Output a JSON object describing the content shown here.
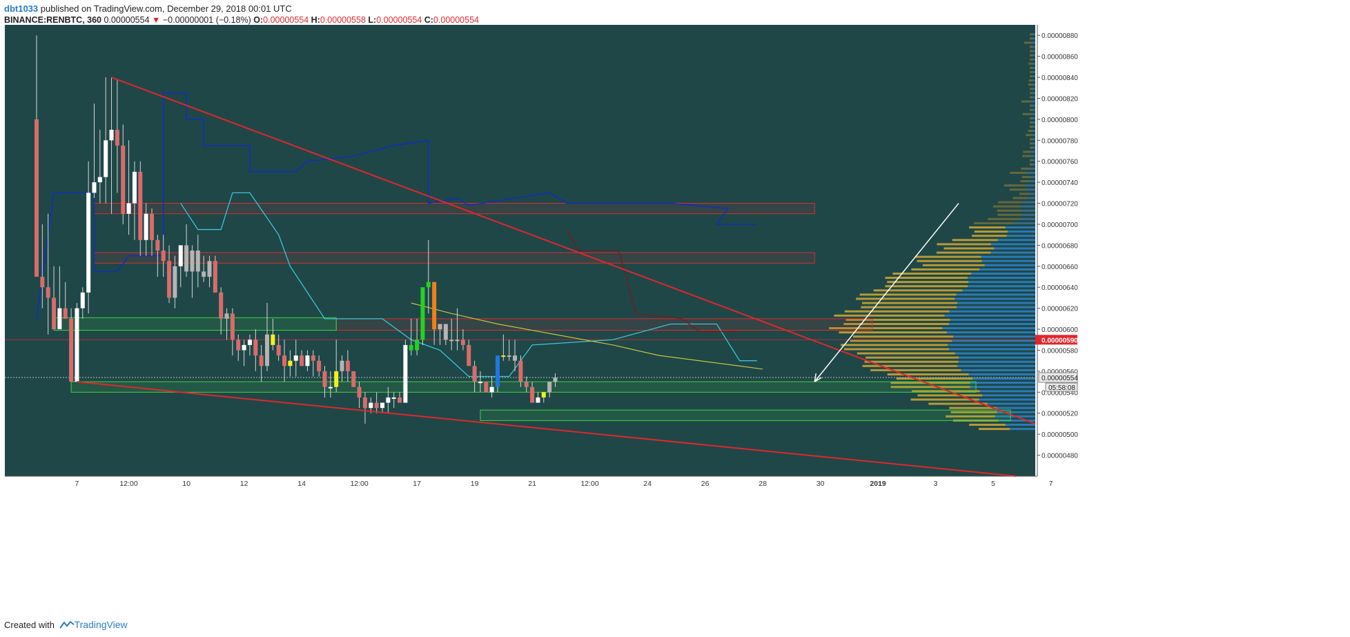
{
  "header": {
    "author": "dbt1033",
    "published_text": "published on TradingView.com, December 29, 2018 00:01 UTC",
    "symbol": "BINANCE:RENBTC, 360",
    "last": "0.00000554",
    "change": "−0.00000001 (−0.18%)",
    "ohlc": [
      {
        "label": "O:",
        "value": "0.00000554"
      },
      {
        "label": "H:",
        "value": "0.00000558"
      },
      {
        "label": "L:",
        "value": "0.00000554"
      },
      {
        "label": "C:",
        "value": "0.00000554"
      }
    ]
  },
  "footer": {
    "created_with": "Created with",
    "brand": "TradingView"
  },
  "colors": {
    "background": "#1f4748",
    "bull": "#ffffff",
    "bear": "#d96b6b",
    "trendline": "#e3262b",
    "kijun": "#0b2bd0",
    "tenkan": "#39c6d9",
    "ma": "#d7cf3a",
    "zone_green": "#3fd33f",
    "zone_red": "#d8302e",
    "vp_up": "#2b7fc1",
    "vp_down": "#c9a332",
    "vp_dim": "#6e6c3a"
  },
  "chart_data": {
    "type": "candlestick",
    "y_axis": {
      "ylim": [
        4.6e-06,
        8.9e-06
      ],
      "ticks": [
        "0.00000480",
        "0.00000500",
        "0.00000520",
        "0.00000540",
        "0.00000560",
        "0.00000580",
        "0.00000600",
        "0.00000620",
        "0.00000640",
        "0.00000660",
        "0.00000680",
        "0.00000700",
        "0.00000720",
        "0.00000740",
        "0.00000760",
        "0.00000780",
        "0.00000800",
        "0.00000820",
        "0.00000840",
        "0.00000860",
        "0.00000880"
      ],
      "ticks_values": [
        4.8,
        5.0,
        5.2,
        5.4,
        5.6,
        5.8,
        6.0,
        6.2,
        6.4,
        6.6,
        6.8,
        7.0,
        7.2,
        7.4,
        7.6,
        7.8,
        8.0,
        8.2,
        8.4,
        8.6,
        8.8
      ],
      "scale_note": "values in 1e-6 BTC"
    },
    "x_axis": {
      "ticks": [
        "7",
        "12:00",
        "10",
        "12",
        "14",
        "12:00",
        "17",
        "19",
        "21",
        "12:00",
        "24",
        "26",
        "28",
        "30",
        "2019",
        "3",
        "5",
        "7"
      ],
      "tick_index": [
        7,
        16,
        26,
        36,
        46,
        56,
        66,
        76,
        86,
        96,
        106,
        116,
        126,
        136,
        146,
        156,
        166,
        176
      ],
      "bold_tick": "2019"
    },
    "candles_ohlc_1e6": [
      [
        8.0,
        8.8,
        6.5,
        6.5
      ],
      [
        6.5,
        7.0,
        6.2,
        6.4
      ],
      [
        6.4,
        7.1,
        5.95,
        6.3
      ],
      [
        6.3,
        6.6,
        6.0,
        6.0
      ],
      [
        6.0,
        6.6,
        6.05,
        6.2
      ],
      [
        6.2,
        6.45,
        6.1,
        6.1
      ],
      [
        6.1,
        6.2,
        5.5,
        5.5
      ],
      [
        5.5,
        6.25,
        5.5,
        6.2
      ],
      [
        6.2,
        6.4,
        6.1,
        6.35
      ],
      [
        6.35,
        7.6,
        6.15,
        7.3
      ],
      [
        7.3,
        8.15,
        7.25,
        7.4
      ],
      [
        7.4,
        7.9,
        7.2,
        7.45
      ],
      [
        7.45,
        8.4,
        7.2,
        7.8
      ],
      [
        7.8,
        8.4,
        7.1,
        7.9
      ],
      [
        7.9,
        8.38,
        7.3,
        7.75
      ],
      [
        7.75,
        7.95,
        7.0,
        7.1
      ],
      [
        7.1,
        7.8,
        6.9,
        7.2
      ],
      [
        7.2,
        7.6,
        6.85,
        7.5
      ],
      [
        7.5,
        7.6,
        6.7,
        6.85
      ],
      [
        6.85,
        7.2,
        6.7,
        7.1
      ],
      [
        7.1,
        7.15,
        6.7,
        6.85
      ],
      [
        6.85,
        6.9,
        6.5,
        6.75
      ],
      [
        6.75,
        6.9,
        6.5,
        6.65
      ],
      [
        6.65,
        6.8,
        6.25,
        6.3
      ],
      [
        6.3,
        6.7,
        6.2,
        6.6
      ],
      [
        6.6,
        6.8,
        6.4,
        6.8
      ],
      [
        6.8,
        7.0,
        6.5,
        6.55
      ],
      [
        6.55,
        6.8,
        6.3,
        6.75
      ],
      [
        6.75,
        6.9,
        6.4,
        6.55
      ],
      [
        6.55,
        6.7,
        6.45,
        6.5
      ],
      [
        6.5,
        6.7,
        6.4,
        6.65
      ],
      [
        6.65,
        6.7,
        6.35,
        6.35
      ],
      [
        6.35,
        6.4,
        5.95,
        6.1
      ],
      [
        6.1,
        6.2,
        5.9,
        6.15
      ],
      [
        6.15,
        6.2,
        5.75,
        5.9
      ],
      [
        5.9,
        5.95,
        5.7,
        5.8
      ],
      [
        5.8,
        5.9,
        5.65,
        5.85
      ],
      [
        5.85,
        5.95,
        5.75,
        5.9
      ],
      [
        5.9,
        6.0,
        5.6,
        5.75
      ],
      [
        5.75,
        5.85,
        5.5,
        5.65
      ],
      [
        5.65,
        6.25,
        5.6,
        5.95
      ],
      [
        5.95,
        6.1,
        5.8,
        5.85
      ],
      [
        5.85,
        5.95,
        5.7,
        5.75
      ],
      [
        5.75,
        5.9,
        5.5,
        5.65
      ],
      [
        5.65,
        5.8,
        5.55,
        5.7
      ],
      [
        5.7,
        5.9,
        5.55,
        5.75
      ],
      [
        5.75,
        5.8,
        5.65,
        5.65
      ],
      [
        5.65,
        5.8,
        5.6,
        5.75
      ],
      [
        5.75,
        5.8,
        5.55,
        5.7
      ],
      [
        5.7,
        5.75,
        5.55,
        5.6
      ],
      [
        5.6,
        5.65,
        5.35,
        5.45
      ],
      [
        5.45,
        5.6,
        5.35,
        5.45
      ],
      [
        5.45,
        5.9,
        5.4,
        5.6
      ],
      [
        5.6,
        5.75,
        5.5,
        5.7
      ],
      [
        5.7,
        5.8,
        5.5,
        5.6
      ],
      [
        5.6,
        5.6,
        5.45,
        5.45
      ],
      [
        5.45,
        5.5,
        5.25,
        5.35
      ],
      [
        5.35,
        5.4,
        5.1,
        5.25
      ],
      [
        5.25,
        5.35,
        5.2,
        5.3
      ],
      [
        5.3,
        5.4,
        5.2,
        5.25
      ],
      [
        5.25,
        5.3,
        5.2,
        5.3
      ],
      [
        5.3,
        5.45,
        5.2,
        5.35
      ],
      [
        5.35,
        5.4,
        5.25,
        5.35
      ],
      [
        5.35,
        5.4,
        5.3,
        5.3
      ],
      [
        5.3,
        5.9,
        5.3,
        5.85
      ],
      [
        5.85,
        6.1,
        5.75,
        5.8
      ],
      [
        5.8,
        6.1,
        5.75,
        5.9
      ],
      [
        5.9,
        6.2,
        5.85,
        6.4
      ],
      [
        6.4,
        6.85,
        6.15,
        6.45
      ],
      [
        6.45,
        6.45,
        5.85,
        6.0
      ],
      [
        6.0,
        6.05,
        5.85,
        6.05
      ],
      [
        6.05,
        6.05,
        5.85,
        5.9
      ],
      [
        5.9,
        6.1,
        5.8,
        5.9
      ],
      [
        5.9,
        6.2,
        5.8,
        5.9
      ],
      [
        5.9,
        6.0,
        5.8,
        5.85
      ],
      [
        5.85,
        5.9,
        5.7,
        5.65
      ],
      [
        5.65,
        5.7,
        5.4,
        5.5
      ],
      [
        5.5,
        5.6,
        5.4,
        5.5
      ],
      [
        5.5,
        5.5,
        5.4,
        5.4
      ],
      [
        5.4,
        5.55,
        5.35,
        5.45
      ],
      [
        5.45,
        5.75,
        5.4,
        5.75
      ],
      [
        5.75,
        5.95,
        5.7,
        5.75
      ],
      [
        5.75,
        5.9,
        5.7,
        5.75
      ],
      [
        5.75,
        5.9,
        5.6,
        5.7
      ],
      [
        5.7,
        5.75,
        5.45,
        5.5
      ],
      [
        5.5,
        5.55,
        5.4,
        5.45
      ],
      [
        5.45,
        5.5,
        5.35,
        5.3
      ],
      [
        5.3,
        5.4,
        5.3,
        5.35
      ],
      [
        5.35,
        5.4,
        5.3,
        5.4
      ],
      [
        5.4,
        5.5,
        5.35,
        5.5
      ],
      [
        5.5,
        5.58,
        5.45,
        5.54
      ]
    ],
    "candle_colors": {
      "9": "bull",
      "13": "bull",
      "16": "bull",
      "41": "yellow",
      "44": "yellow",
      "52": "yellow",
      "65": "green",
      "66": "green",
      "67": "green",
      "68": "green",
      "69": "orange",
      "80": "blue",
      "81": "yellow",
      "88": "yellow",
      "24": "gray",
      "26": "gray",
      "27": "gray",
      "28": "gray",
      "30": "gray",
      "71": "gray",
      "72": "gray",
      "73": "gray",
      "89": "gray",
      "90": "gray",
      "29": "gray",
      "33": "gray",
      "40": "gray",
      "53": "gray",
      "70": "gray",
      "82": "gray",
      "83": "gray"
    },
    "horizontal_zones_1e6": [
      {
        "color": "red",
        "y1": 7.1,
        "y2": 7.2,
        "x1": 10,
        "x2": 135
      },
      {
        "color": "red",
        "y1": 6.63,
        "y2": 6.73,
        "x1": 10,
        "x2": 135
      },
      {
        "color": "red",
        "y1": 5.99,
        "y2": 6.1,
        "x1": 52,
        "x2": 145
      },
      {
        "color": "green",
        "y1": 5.99,
        "y2": 6.11,
        "x1": 3,
        "x2": 52
      },
      {
        "color": "green",
        "y1": 5.4,
        "y2": 5.5,
        "x1": 6,
        "x2": 163
      },
      {
        "color": "green",
        "y1": 5.13,
        "y2": 5.23,
        "x1": 77,
        "x2": 169
      }
    ],
    "trendlines_1e6": [
      {
        "x1": 13,
        "y1": 8.4,
        "x2": 190,
        "y2": 5.1
      },
      {
        "x1": 7,
        "y1": 5.5,
        "x2": 170,
        "y2": 4.6
      }
    ],
    "price_markers": {
      "last_price": "0.00000554",
      "red_level": "0.00000590",
      "countdown": "05:58:08"
    },
    "arrow": {
      "x1": 160,
      "y1": 7.2,
      "x2": 135,
      "y2": 5.5
    }
  }
}
